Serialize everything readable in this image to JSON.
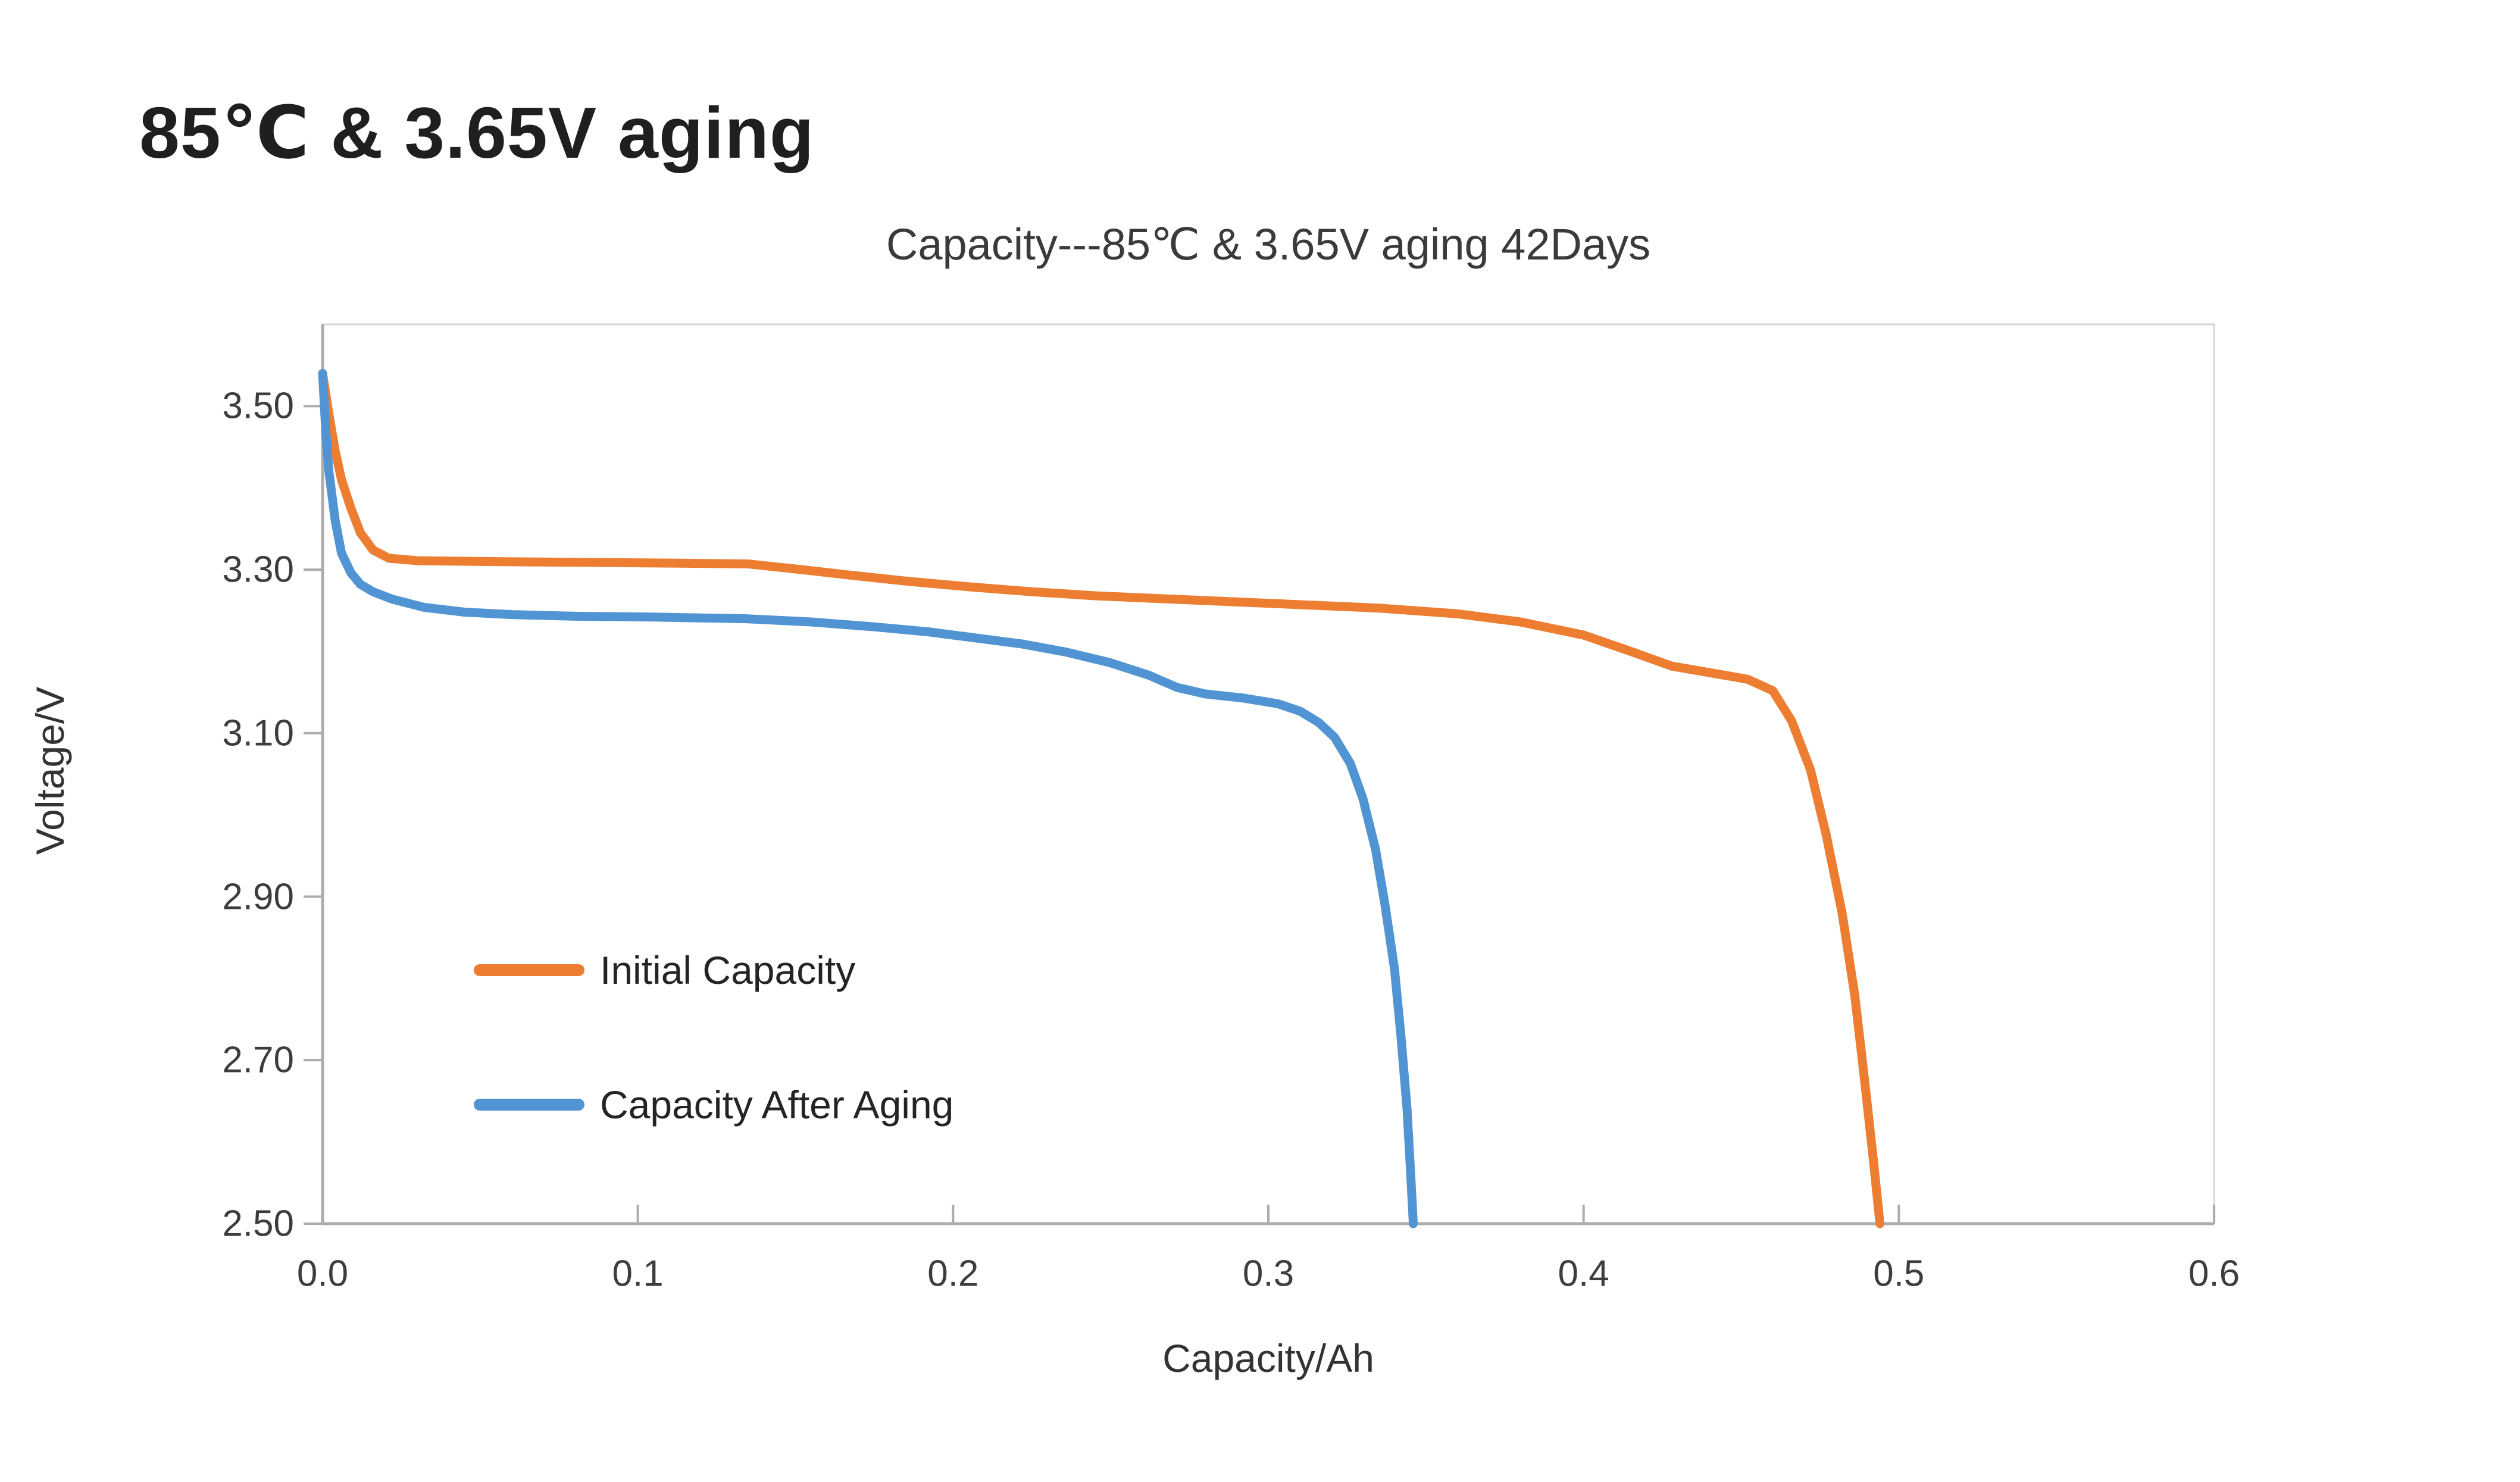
{
  "page": {
    "heading": "85℃ & 3.65V aging"
  },
  "chart_data": {
    "type": "line",
    "title": "Capacity---85℃ & 3.65V aging 42Days",
    "xlabel": "Capacity/Ah",
    "ylabel": "Voltage/V",
    "xlim": [
      0.0,
      0.6
    ],
    "ylim": [
      2.5,
      3.6
    ],
    "x_ticks": [
      0.0,
      0.1,
      0.2,
      0.3,
      0.4,
      0.5,
      0.6
    ],
    "x_tick_labels": [
      "0.0",
      "0.1",
      "0.2",
      "0.3",
      "0.4",
      "0.5",
      "0.6"
    ],
    "y_ticks": [
      3.5,
      3.3,
      3.1,
      2.9,
      2.7,
      2.5
    ],
    "y_tick_labels": [
      "3.50",
      "3.30",
      "3.10",
      "2.90",
      "2.70",
      "2.50"
    ],
    "grid": false,
    "legend_position": "inside-left-bottom",
    "series": [
      {
        "name": "Initial Capacity",
        "color": "#ED7D31",
        "points": [
          [
            0.0,
            3.54
          ],
          [
            0.002,
            3.49
          ],
          [
            0.004,
            3.445
          ],
          [
            0.006,
            3.41
          ],
          [
            0.009,
            3.375
          ],
          [
            0.012,
            3.345
          ],
          [
            0.016,
            3.324
          ],
          [
            0.021,
            3.314
          ],
          [
            0.03,
            3.311
          ],
          [
            0.05,
            3.31
          ],
          [
            0.08,
            3.309
          ],
          [
            0.11,
            3.308
          ],
          [
            0.135,
            3.307
          ],
          [
            0.152,
            3.3
          ],
          [
            0.168,
            3.293
          ],
          [
            0.185,
            3.286
          ],
          [
            0.205,
            3.279
          ],
          [
            0.225,
            3.273
          ],
          [
            0.245,
            3.268
          ],
          [
            0.275,
            3.263
          ],
          [
            0.305,
            3.258
          ],
          [
            0.335,
            3.253
          ],
          [
            0.36,
            3.246
          ],
          [
            0.38,
            3.236
          ],
          [
            0.4,
            3.22
          ],
          [
            0.415,
            3.2
          ],
          [
            0.428,
            3.182
          ],
          [
            0.44,
            3.174
          ],
          [
            0.452,
            3.166
          ],
          [
            0.46,
            3.152
          ],
          [
            0.466,
            3.115
          ],
          [
            0.472,
            3.055
          ],
          [
            0.477,
            2.975
          ],
          [
            0.482,
            2.88
          ],
          [
            0.486,
            2.78
          ],
          [
            0.489,
            2.68
          ],
          [
            0.492,
            2.575
          ],
          [
            0.494,
            2.5
          ]
        ]
      },
      {
        "name": "Capacity After Aging",
        "color": "#5094D3",
        "points": [
          [
            0.0,
            3.54
          ],
          [
            0.001,
            3.47
          ],
          [
            0.002,
            3.42
          ],
          [
            0.004,
            3.36
          ],
          [
            0.006,
            3.32
          ],
          [
            0.009,
            3.296
          ],
          [
            0.012,
            3.282
          ],
          [
            0.016,
            3.273
          ],
          [
            0.022,
            3.264
          ],
          [
            0.032,
            3.254
          ],
          [
            0.045,
            3.248
          ],
          [
            0.06,
            3.245
          ],
          [
            0.08,
            3.243
          ],
          [
            0.105,
            3.242
          ],
          [
            0.134,
            3.24
          ],
          [
            0.155,
            3.236
          ],
          [
            0.175,
            3.23
          ],
          [
            0.192,
            3.224
          ],
          [
            0.206,
            3.217
          ],
          [
            0.222,
            3.209
          ],
          [
            0.236,
            3.199
          ],
          [
            0.25,
            3.186
          ],
          [
            0.262,
            3.171
          ],
          [
            0.271,
            3.156
          ],
          [
            0.28,
            3.148
          ],
          [
            0.292,
            3.143
          ],
          [
            0.303,
            3.136
          ],
          [
            0.31,
            3.127
          ],
          [
            0.316,
            3.113
          ],
          [
            0.321,
            3.095
          ],
          [
            0.326,
            3.063
          ],
          [
            0.33,
            3.02
          ],
          [
            0.334,
            2.958
          ],
          [
            0.337,
            2.89
          ],
          [
            0.34,
            2.812
          ],
          [
            0.342,
            2.732
          ],
          [
            0.344,
            2.64
          ],
          [
            0.345,
            2.572
          ],
          [
            0.346,
            2.5
          ]
        ]
      }
    ]
  }
}
